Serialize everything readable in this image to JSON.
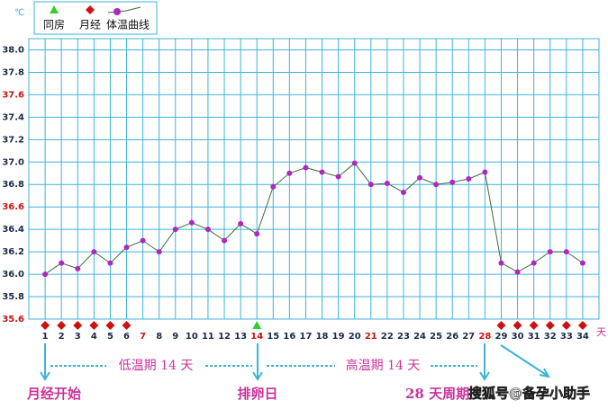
{
  "chart_data": {
    "type": "line",
    "y_unit": "℃",
    "x_unit": "天",
    "x": [
      1,
      2,
      3,
      4,
      5,
      6,
      7,
      8,
      9,
      10,
      11,
      12,
      13,
      14,
      15,
      16,
      17,
      18,
      19,
      20,
      21,
      22,
      23,
      24,
      25,
      26,
      27,
      28,
      29,
      30,
      31,
      32,
      33,
      34
    ],
    "series": [
      {
        "name": "体温曲线",
        "color": "#3d6b3d",
        "marker_color": "#b026c2",
        "values": [
          36.0,
          36.1,
          36.05,
          36.2,
          36.1,
          36.24,
          36.3,
          36.2,
          36.4,
          36.46,
          36.4,
          36.3,
          36.45,
          36.36,
          36.78,
          36.9,
          36.95,
          36.91,
          36.87,
          36.99,
          36.8,
          36.81,
          36.73,
          36.86,
          36.8,
          36.82,
          36.85,
          36.91,
          36.1,
          36.02,
          36.1,
          36.2,
          36.2,
          36.1
        ]
      }
    ],
    "events": [
      {
        "name": "同房",
        "color": "#33cc33",
        "shape": "triangle",
        "days": [
          14
        ]
      },
      {
        "name": "月经",
        "color": "#cc1111",
        "shape": "diamond",
        "days": [
          1,
          2,
          3,
          4,
          5,
          6,
          29,
          30,
          31,
          32,
          33,
          34
        ]
      }
    ],
    "xlim": [
      0,
      35
    ],
    "ylim": [
      35.6,
      38.1
    ],
    "yticks": [
      {
        "value": 35.6,
        "label": "35.6"
      },
      35.8,
      {
        "value": 36.0,
        "label": "36.0"
      },
      36.2,
      36.4,
      36.6,
      36.8,
      {
        "value": 37.0,
        "label": "37.0"
      },
      37.2,
      37.4,
      37.6,
      37.8,
      {
        "value": 38.0,
        "label": "38.0"
      }
    ],
    "highlight_yticks": [
      35.6,
      36.6,
      37.6
    ],
    "highlight_xticks": [
      7,
      14,
      21,
      28
    ],
    "highlight_color": "#cc1111",
    "grid": true,
    "grid_color": "#3db4d6",
    "annotations": {
      "low_phase": "低温期 14 天",
      "high_phase": "高温期 14 天",
      "period_start": "月经开始",
      "ovulation": "排卵日",
      "cycle": "28 天周期"
    },
    "watermark": "搜狐号@备孕小助手"
  }
}
